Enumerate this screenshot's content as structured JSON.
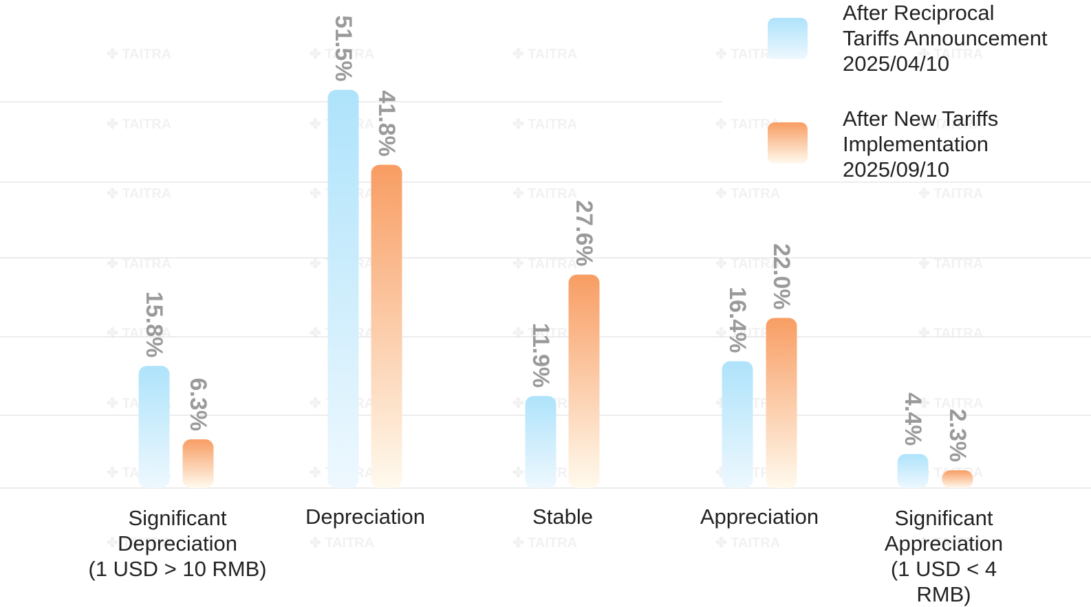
{
  "watermark": "TAITRA",
  "colors": {
    "series1_top": "#aee3fb",
    "series1_bottom": "#eef8fe",
    "series2_top": "#f89d63",
    "series2_bottom": "#fffaee",
    "label": "#9a9a9a",
    "gridline": "#e6e6e6"
  },
  "chart_data": {
    "type": "bar",
    "categories": [
      "Significant\nDepreciation\n(1 USD > 10 RMB)",
      "Depreciation",
      "Stable",
      "Appreciation",
      "Significant\nAppreciation\n(1 USD < 4 RMB)"
    ],
    "series": [
      {
        "name": "After Reciprocal\nTariffs Announcement\n2025/04/10",
        "values": [
          15.8,
          51.5,
          11.9,
          16.4,
          4.4
        ],
        "labels": [
          "15.8%",
          "51.5%",
          "11.9%",
          "16.4%",
          "4.4%"
        ]
      },
      {
        "name": "After New Tariffs\nImplementation\n 2025/09/10",
        "values": [
          6.3,
          41.8,
          27.6,
          22.0,
          2.3
        ],
        "labels": [
          "6.3%",
          "41.8%",
          "27.6%",
          "22.0%",
          "2.3%"
        ]
      }
    ],
    "ylim": [
      0,
      55
    ],
    "grid": true,
    "legend": "top-right",
    "data_labels": "rotated-vertical"
  }
}
